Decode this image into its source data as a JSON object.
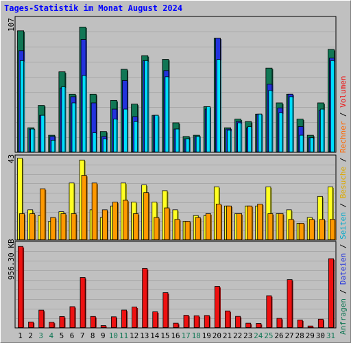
{
  "title": "Tages-Statistik im Monat August 2024",
  "chart_data": [
    {
      "type": "bar",
      "panel": "top",
      "ymax_label": "107",
      "ylim": [
        0,
        107
      ],
      "categories": [
        "1",
        "2",
        "3",
        "4",
        "5",
        "6",
        "7",
        "8",
        "9",
        "10",
        "11",
        "12",
        "13",
        "14",
        "15",
        "16",
        "17",
        "18",
        "19",
        "20",
        "21",
        "22",
        "23",
        "24",
        "25",
        "26",
        "27",
        "28",
        "29",
        "30",
        "31"
      ],
      "series": [
        {
          "name": "Anfragen",
          "color": "#117755",
          "values": [
            98,
            20,
            38,
            14,
            65,
            47,
            101,
            47,
            17,
            42,
            67,
            39,
            78,
            30,
            75,
            24,
            13,
            14,
            37,
            92,
            20,
            27,
            25,
            31,
            68,
            40,
            47,
            27,
            14,
            40,
            83
          ]
        },
        {
          "name": "Dateien",
          "color": "#2233dd",
          "values": [
            82,
            19,
            30,
            13,
            52,
            45,
            91,
            40,
            13,
            35,
            58,
            29,
            74,
            30,
            66,
            19,
            11,
            13,
            35,
            92,
            19,
            25,
            20,
            31,
            55,
            36,
            47,
            21,
            12,
            34,
            76
          ]
        },
        {
          "name": "Seiten",
          "color": "#00ddff",
          "values": [
            74,
            19,
            30,
            10,
            53,
            40,
            62,
            16,
            11,
            27,
            35,
            25,
            74,
            30,
            61,
            19,
            11,
            13,
            37,
            75,
            18,
            24,
            21,
            31,
            50,
            32,
            45,
            14,
            12,
            35,
            74
          ]
        }
      ]
    },
    {
      "type": "bar",
      "panel": "middle",
      "ymax_label": "43",
      "ylim": [
        0,
        43
      ],
      "categories": [
        "1",
        "2",
        "3",
        "4",
        "5",
        "6",
        "7",
        "8",
        "9",
        "10",
        "11",
        "12",
        "13",
        "14",
        "15",
        "16",
        "17",
        "18",
        "19",
        "20",
        "21",
        "22",
        "23",
        "24",
        "25",
        "26",
        "27",
        "28",
        "29",
        "30",
        "31"
      ],
      "series": [
        {
          "name": "Besuche",
          "color": "#ffff22",
          "values": [
            43,
            16,
            13,
            10,
            15,
            30,
            42,
            16,
            12,
            18,
            30,
            20,
            29,
            20,
            26,
            16,
            10,
            13,
            13,
            28,
            18,
            14,
            18,
            18,
            28,
            14,
            16,
            9,
            12,
            23,
            28
          ]
        },
        {
          "name": "Rechner",
          "color": "#ff9900",
          "values": [
            14,
            14,
            27,
            12,
            14,
            14,
            34,
            30,
            16,
            20,
            21,
            14,
            25,
            12,
            17,
            11,
            10,
            12,
            14,
            19,
            18,
            14,
            18,
            19,
            14,
            14,
            11,
            9,
            11,
            11,
            11
          ]
        }
      ]
    },
    {
      "type": "bar",
      "panel": "bottom",
      "ymax_label": "956.30 KB",
      "ylim": [
        0,
        956.3
      ],
      "categories": [
        "1",
        "2",
        "3",
        "4",
        "5",
        "6",
        "7",
        "8",
        "9",
        "10",
        "11",
        "12",
        "13",
        "14",
        "15",
        "16",
        "17",
        "18",
        "19",
        "20",
        "21",
        "22",
        "23",
        "24",
        "25",
        "26",
        "27",
        "28",
        "29",
        "30",
        "31"
      ],
      "series": [
        {
          "name": "Volumen",
          "color": "#ee1111",
          "values": [
            935,
            72,
            207,
            69,
            134,
            247,
            580,
            135,
            31,
            131,
            208,
            243,
            683,
            188,
            407,
            58,
            148,
            143,
            146,
            478,
            198,
            136,
            58,
            55,
            372,
            113,
            556,
            95,
            26,
            104,
            795
          ]
        }
      ]
    }
  ],
  "x_labels": [
    {
      "text": "1",
      "color": "#000000"
    },
    {
      "text": "2",
      "color": "#000000"
    },
    {
      "text": "3",
      "color": "#117755"
    },
    {
      "text": "4",
      "color": "#117755"
    },
    {
      "text": "5",
      "color": "#000000"
    },
    {
      "text": "6",
      "color": "#000000"
    },
    {
      "text": "7",
      "color": "#000000"
    },
    {
      "text": "8",
      "color": "#000000"
    },
    {
      "text": "9",
      "color": "#000000"
    },
    {
      "text": "10",
      "color": "#117755"
    },
    {
      "text": "11",
      "color": "#117755"
    },
    {
      "text": "12",
      "color": "#000000"
    },
    {
      "text": "13",
      "color": "#000000"
    },
    {
      "text": "14",
      "color": "#000000"
    },
    {
      "text": "15",
      "color": "#000000"
    },
    {
      "text": "16",
      "color": "#000000"
    },
    {
      "text": "17",
      "color": "#117755"
    },
    {
      "text": "18",
      "color": "#117755"
    },
    {
      "text": "19",
      "color": "#000000"
    },
    {
      "text": "20",
      "color": "#000000"
    },
    {
      "text": "21",
      "color": "#000000"
    },
    {
      "text": "22",
      "color": "#000000"
    },
    {
      "text": "23",
      "color": "#000000"
    },
    {
      "text": "24",
      "color": "#117755"
    },
    {
      "text": "25",
      "color": "#117755"
    },
    {
      "text": "26",
      "color": "#000000"
    },
    {
      "text": "27",
      "color": "#000000"
    },
    {
      "text": "28",
      "color": "#000000"
    },
    {
      "text": "29",
      "color": "#000000"
    },
    {
      "text": "30",
      "color": "#000000"
    },
    {
      "text": "31",
      "color": "#117755"
    }
  ],
  "legend_top": [
    {
      "text": "Anfragen",
      "color": "#117755"
    },
    {
      "text": " / ",
      "color": "#000000"
    },
    {
      "text": "Dateien",
      "color": "#2233dd"
    },
    {
      "text": " / ",
      "color": "#000000"
    },
    {
      "text": "Seiten",
      "color": "#00aacc"
    },
    {
      "text": " / ",
      "color": "#000000"
    },
    {
      "text": "Besuche",
      "color": "#ddaa00"
    },
    {
      "text": " / ",
      "color": "#000000"
    },
    {
      "text": "Rechner",
      "color": "#ff6600"
    },
    {
      "text": " / ",
      "color": "#000000"
    },
    {
      "text": "Volumen",
      "color": "#ee1111"
    }
  ]
}
